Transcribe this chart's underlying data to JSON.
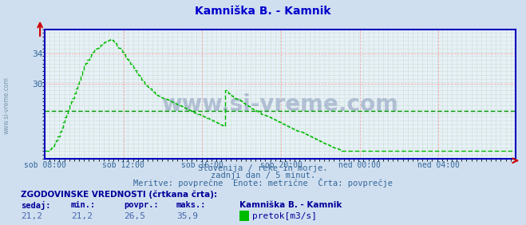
{
  "title": "Kamniška B. - Kamnik",
  "title_color": "#0000cc",
  "bg_color": "#d0dff0",
  "plot_bg_color": "#e8f0f8",
  "grid_color_major": "#ff9999",
  "grid_color_minor": "#99cc99",
  "line_color": "#00bb00",
  "avg_line_color": "#009900",
  "axis_color": "#0000bb",
  "tick_color": "#336699",
  "watermark_text": "www.si-vreme.com",
  "xtick_labels": [
    "sob 08:00",
    "sob 12:00",
    "sob 16:00",
    "sob 20:00",
    "ned 00:00",
    "ned 04:00"
  ],
  "xtick_positions": [
    0,
    48,
    96,
    144,
    192,
    240
  ],
  "ylim": [
    20.2,
    37.2
  ],
  "xlim": [
    0,
    287
  ],
  "avg_value": 26.5,
  "subtitle1": "Slovenija / reke in morje.",
  "subtitle2": "zadnji dan / 5 minut.",
  "subtitle3": "Meritve: povprečne  Enote: metrične  Črta: povprečje",
  "footer_title": "ZGODOVINSKE VREDNOSTI (črtkana črta):",
  "footer_labels": [
    "sedaj:",
    "min.:",
    "povpr.:",
    "maks.:"
  ],
  "footer_values": [
    "21,2",
    "21,2",
    "26,5",
    "35,9"
  ],
  "station_label": "Kamniška B. - Kamnik",
  "legend_label": "pretok[m3/s]",
  "flow_data": [
    21.2,
    21.2,
    21.2,
    21.4,
    21.6,
    21.9,
    22.2,
    22.6,
    23.1,
    23.7,
    24.3,
    25.0,
    25.6,
    26.2,
    26.7,
    27.2,
    27.7,
    28.2,
    28.8,
    29.4,
    30.0,
    30.6,
    31.2,
    31.8,
    32.3,
    32.8,
    33.2,
    33.6,
    33.9,
    34.2,
    34.4,
    34.6,
    34.8,
    35.0,
    35.2,
    35.4,
    35.5,
    35.6,
    35.7,
    35.8,
    35.9,
    35.8,
    35.6,
    35.4,
    35.1,
    34.8,
    34.5,
    34.2,
    33.9,
    33.6,
    33.3,
    33.0,
    32.7,
    32.4,
    32.1,
    31.8,
    31.5,
    31.2,
    30.9,
    30.6,
    30.3,
    30.0,
    29.8,
    29.6,
    29.4,
    29.2,
    29.0,
    28.8,
    28.6,
    28.5,
    28.4,
    28.3,
    28.2,
    28.1,
    28.0,
    27.9,
    27.8,
    27.7,
    27.6,
    27.5,
    27.4,
    27.3,
    27.2,
    27.1,
    27.0,
    26.9,
    26.8,
    26.7,
    26.6,
    26.5,
    26.4,
    26.3,
    26.2,
    26.1,
    26.0,
    25.9,
    25.8,
    25.7,
    25.6,
    25.5,
    25.4,
    25.3,
    25.2,
    25.1,
    25.0,
    24.9,
    24.8,
    24.7,
    24.6,
    24.5,
    29.2,
    29.0,
    28.8,
    28.6,
    28.5,
    28.3,
    28.2,
    28.0,
    27.9,
    27.8,
    27.6,
    27.5,
    27.3,
    27.2,
    27.1,
    26.9,
    26.8,
    26.7,
    26.6,
    26.5,
    26.4,
    26.3,
    26.1,
    26.0,
    25.9,
    25.8,
    25.7,
    25.6,
    25.5,
    25.4,
    25.3,
    25.2,
    25.1,
    25.0,
    24.9,
    24.8,
    24.7,
    24.6,
    24.5,
    24.4,
    24.3,
    24.2,
    24.1,
    24.0,
    23.9,
    23.8,
    23.7,
    23.6,
    23.5,
    23.4,
    23.3,
    23.2,
    23.1,
    23.0,
    22.9,
    22.8,
    22.7,
    22.6,
    22.5,
    22.4,
    22.3,
    22.2,
    22.1,
    22.0,
    21.9,
    21.8,
    21.7,
    21.6,
    21.5,
    21.4,
    21.3,
    21.2,
    21.2,
    21.2,
    21.2,
    21.2,
    21.2,
    21.2,
    21.2,
    21.2,
    21.2,
    21.2,
    21.2,
    21.2,
    21.2,
    21.2,
    21.2,
    21.2,
    21.2,
    21.2,
    21.2,
    21.2,
    21.2,
    21.2,
    21.2,
    21.2,
    21.2,
    21.2,
    21.2,
    21.2,
    21.2,
    21.2,
    21.2,
    21.2,
    21.2,
    21.2,
    21.2,
    21.2,
    21.2,
    21.2,
    21.2,
    21.2,
    21.2,
    21.2,
    21.2,
    21.2,
    21.2,
    21.2,
    21.2,
    21.2,
    21.2,
    21.2,
    21.2,
    21.2,
    21.2,
    21.2,
    21.2,
    21.2,
    21.2,
    21.2,
    21.2,
    21.2,
    21.2,
    21.2,
    21.2,
    21.2,
    21.2,
    21.2,
    21.2,
    21.2,
    21.2,
    21.2,
    21.2,
    21.2,
    21.2,
    21.2,
    21.2,
    21.2,
    21.2,
    21.2,
    21.2,
    21.2,
    21.2,
    21.2,
    21.2,
    21.2,
    21.2,
    21.2,
    21.2,
    21.2,
    21.2,
    21.2,
    21.2,
    21.2,
    21.2,
    21.2,
    21.2,
    21.2,
    21.2,
    21.2,
    21.2,
    21.2,
    21.2,
    21.2,
    21.2,
    21.2,
    21.2
  ]
}
